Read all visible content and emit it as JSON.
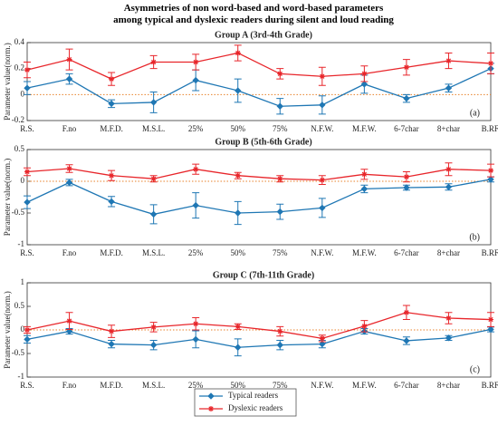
{
  "title": "Asymmetries of non word-based and word-based parameters among typical and dyslexic readers during silent and loud reading",
  "chart_data": [
    {
      "type": "line",
      "title": "Group A (3rd-4th Grade)",
      "ylabel": "Parameter value(norm.)",
      "annotation": "(a)",
      "categories": [
        "R.S.",
        "F.no",
        "M.F.D.",
        "M.S.L.",
        "25%",
        "50%",
        "75%",
        "N.F.W.",
        "M.F.W.",
        "6-7char",
        "8+char",
        "B.RF."
      ],
      "ylim": [
        -0.2,
        0.4
      ],
      "yticks": [
        -0.2,
        0,
        0.2,
        0.4
      ],
      "series": [
        {
          "color": "#1f77b4",
          "values": [
            0.05,
            0.12,
            -0.07,
            -0.06,
            0.11,
            0.03,
            -0.09,
            -0.08,
            0.08,
            -0.03,
            0.05,
            0.2
          ],
          "errors": [
            0.05,
            0.04,
            0.03,
            0.08,
            0.08,
            0.09,
            0.06,
            0.07,
            0.07,
            0.03,
            0.03,
            0.04
          ]
        },
        {
          "color": "#e8262b",
          "values": [
            0.19,
            0.27,
            0.12,
            0.25,
            0.25,
            0.32,
            0.16,
            0.14,
            0.16,
            0.21,
            0.26,
            0.24
          ],
          "errors": [
            0.06,
            0.08,
            0.05,
            0.05,
            0.06,
            0.06,
            0.04,
            0.07,
            0.06,
            0.06,
            0.06,
            0.08
          ]
        }
      ]
    },
    {
      "type": "line",
      "title": "Group B (5th-6th Grade)",
      "ylabel": "Parameter value(norm.)",
      "annotation": "(b)",
      "categories": [
        "R.S.",
        "F.no",
        "M.F.D.",
        "M.S.L.",
        "25%",
        "50%",
        "75%",
        "N.F.W.",
        "M.F.W.",
        "6-7char",
        "8+char",
        "B.RF."
      ],
      "ylim": [
        -1,
        0.5
      ],
      "yticks": [
        -1,
        -0.5,
        0,
        0.5
      ],
      "series": [
        {
          "color": "#1f77b4",
          "values": [
            -0.33,
            -0.02,
            -0.32,
            -0.52,
            -0.38,
            -0.5,
            -0.48,
            -0.42,
            -0.12,
            -0.1,
            -0.09,
            0.03
          ],
          "errors": [
            0.1,
            0.05,
            0.08,
            0.15,
            0.2,
            0.18,
            0.12,
            0.15,
            0.06,
            0.04,
            0.05,
            0.04
          ]
        },
        {
          "color": "#e8262b",
          "values": [
            0.15,
            0.2,
            0.09,
            0.04,
            0.19,
            0.09,
            0.04,
            0.02,
            0.11,
            0.07,
            0.19,
            0.17
          ],
          "errors": [
            0.06,
            0.06,
            0.08,
            0.05,
            0.08,
            0.05,
            0.05,
            0.07,
            0.08,
            0.08,
            0.1,
            0.1
          ]
        }
      ]
    },
    {
      "type": "line",
      "title": "Group C (7th-11th Grade)",
      "ylabel": "Parameter value(norm.)",
      "annotation": "(c)",
      "categories": [
        "R.S.",
        "F.no",
        "M.F.D.",
        "M.S.L.",
        "25%",
        "50%",
        "75%",
        "N.F.W.",
        "M.F.W.",
        "6-7char",
        "8+char",
        "B.RF."
      ],
      "ylim": [
        -1,
        1
      ],
      "yticks": [
        -1,
        -0.5,
        0,
        0.5,
        1
      ],
      "series": [
        {
          "name": "Typical readers",
          "color": "#1f77b4",
          "values": [
            -0.2,
            -0.03,
            -0.3,
            -0.32,
            -0.2,
            -0.37,
            -0.32,
            -0.3,
            -0.03,
            -0.23,
            -0.17,
            0.01
          ],
          "errors": [
            0.08,
            0.06,
            0.08,
            0.1,
            0.18,
            0.18,
            0.1,
            0.08,
            0.06,
            0.08,
            0.05,
            0.05
          ]
        },
        {
          "name": "Dyslexic readers",
          "color": "#e8262b",
          "values": [
            0,
            0.19,
            -0.03,
            0.06,
            0.13,
            0.07,
            -0.03,
            -0.18,
            0.08,
            0.37,
            0.25,
            0.22
          ],
          "errors": [
            0.07,
            0.18,
            0.13,
            0.1,
            0.13,
            0.06,
            0.1,
            0.07,
            0.12,
            0.15,
            0.12,
            0.15
          ]
        }
      ]
    }
  ]
}
